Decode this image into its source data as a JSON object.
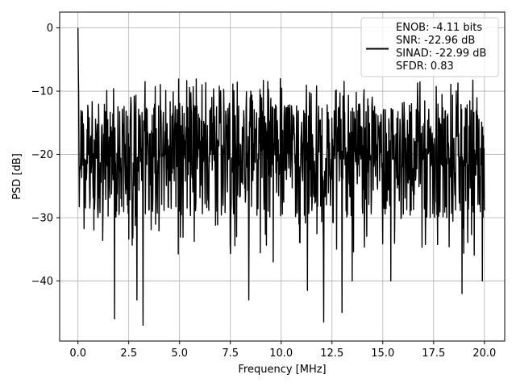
{
  "chart_data": {
    "type": "line",
    "title": "",
    "xlabel": "Frequency [MHz]",
    "ylabel": "PSD [dB]",
    "xlim": [
      -0.9,
      21.0
    ],
    "ylim": [
      -49.5,
      2.5
    ],
    "xticks": [
      0.0,
      2.5,
      5.0,
      7.5,
      10.0,
      12.5,
      15.0,
      17.5,
      20.0
    ],
    "xtick_labels": [
      "0.0",
      "2.5",
      "5.0",
      "7.5",
      "10.0",
      "12.5",
      "15.0",
      "17.5",
      "20.0"
    ],
    "yticks": [
      0,
      -10,
      -20,
      -30,
      -40
    ],
    "ytick_labels": [
      "0",
      "−10",
      "−20",
      "−30",
      "−40"
    ],
    "grid": true,
    "legend_position": "upper-right",
    "line_color": "#000000",
    "series": [
      {
        "name": "ENOB: -4.11 bits\nSNR: -22.96 dB\nSINAD: -22.99 dB\nSFDR: 0.83",
        "legend_lines": [
          "ENOB: -4.11 bits",
          "SNR: -22.96 dB",
          "SINAD: -22.99 dB",
          "SFDR: 0.83"
        ],
        "x_range": [
          0.0,
          20.0
        ],
        "points": 1200,
        "envelope": {
          "upper_typical": -10,
          "upper_peak": -5,
          "lower_typical": -33,
          "peak_at_zero": 0
        },
        "notable_points": [
          {
            "x": 0.0,
            "y": 0
          },
          {
            "x": 1.8,
            "y": -46
          },
          {
            "x": 2.9,
            "y": -43
          },
          {
            "x": 3.2,
            "y": -47
          },
          {
            "x": 8.4,
            "y": -43
          },
          {
            "x": 9.6,
            "y": -37
          },
          {
            "x": 11.3,
            "y": -41.5
          },
          {
            "x": 12.1,
            "y": -46.5
          },
          {
            "x": 13.0,
            "y": -45
          },
          {
            "x": 13.5,
            "y": -40
          },
          {
            "x": 15.4,
            "y": -40
          },
          {
            "x": 18.9,
            "y": -42
          },
          {
            "x": 19.9,
            "y": -40
          }
        ]
      }
    ]
  }
}
